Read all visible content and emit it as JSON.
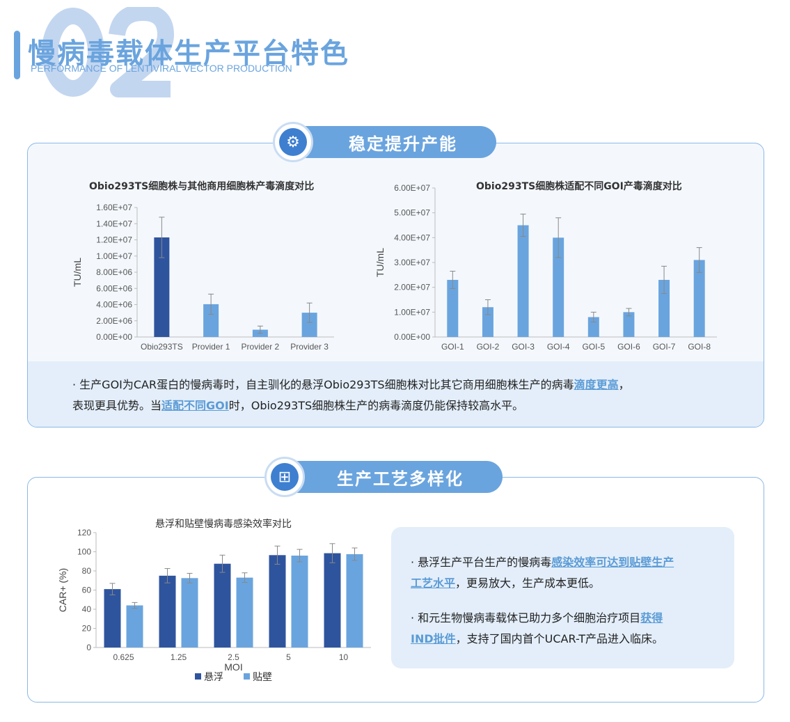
{
  "header": {
    "number": "02",
    "title": "慢病毒载体生产平台特色",
    "subtitle": "PERFORMANCE OF LENTIVIRAL VECTOR PRODUCTION"
  },
  "section1": {
    "pill": "稳定提升产能",
    "icon": "gear-icon",
    "text": {
      "p1a": "· 生产GOI为CAR蛋白的慢病毒时，自主驯化的悬浮Obio293TS细胞株对比其它商用细胞株生产的病毒",
      "p1hl": "滴度更高",
      "p1b": "，",
      "p2a": "表现更具优势。当",
      "p2hl": "适配不同GOI",
      "p2b": "时，Obio293TS细胞株生产的病毒滴度仍能保持较高水平。"
    }
  },
  "section2": {
    "pill": "生产工艺多样化",
    "icon": "network-icon",
    "text": {
      "b1a": "· 悬浮生产平台生产的慢病毒",
      "b1hl1": "感染效率可达到贴壁生产",
      "b1hl2": "工艺水平",
      "b1b": "，更易放大，生产成本更低。",
      "b2a": "· 和元生物慢病毒载体已助力多个细胞治疗项目",
      "b2hl1": "获得",
      "b2hl2": "IND批件",
      "b2b": "，支持了国内首个UCAR-T产品进入临床。"
    }
  },
  "colors": {
    "accent": "#6aa4de",
    "dark_bar": "#2f549e",
    "light_bar": "#6aa4de"
  },
  "chart_data": [
    {
      "type": "bar",
      "title": "Obio293TS细胞株与其他商用细胞株产毒滴度对比",
      "ylabel": "TU/mL",
      "xlabel": "",
      "ylim": [
        0,
        16000000
      ],
      "yticks": [
        "0.00E+00",
        "2.00E+06",
        "4.00E+06",
        "6.00E+06",
        "8.00E+06",
        "1.00E+07",
        "1.20E+07",
        "1.40E+07",
        "1.60E+07"
      ],
      "categories": [
        "Obio293TS",
        "Provider 1",
        "Provider 2",
        "Provider 3"
      ],
      "values": [
        12300000,
        4050000,
        900000,
        3000000
      ],
      "errors": [
        2500000,
        1250000,
        450000,
        1200000
      ],
      "colors": [
        "#2f549e",
        "#6aa4de",
        "#6aa4de",
        "#6aa4de"
      ]
    },
    {
      "type": "bar",
      "title": "Obio293TS细胞株适配不同GOI产毒滴度对比",
      "ylabel": "TU/mL",
      "xlabel": "",
      "ylim": [
        0,
        60000000
      ],
      "yticks": [
        "0.00E+00",
        "1.00E+07",
        "2.00E+07",
        "3.00E+07",
        "4.00E+07",
        "5.00E+07",
        "6.00E+07"
      ],
      "categories": [
        "GOI-1",
        "GOI-2",
        "GOI-3",
        "GOI-4",
        "GOI-5",
        "GOI-6",
        "GOI-7",
        "GOI-8"
      ],
      "values": [
        23000000,
        12000000,
        45000000,
        40000000,
        8000000,
        10000000,
        23000000,
        31000000
      ],
      "errors": [
        3500000,
        3000000,
        4500000,
        8000000,
        2000000,
        1500000,
        5500000,
        5000000
      ],
      "colors": [
        "#6aa4de"
      ]
    },
    {
      "type": "bar",
      "title": "悬浮和贴壁慢病毒感染效率对比",
      "ylabel": "CAR+ (%)",
      "xlabel": "MOI",
      "ylim": [
        0,
        120
      ],
      "yticks": [
        "0",
        "20",
        "40",
        "60",
        "80",
        "100",
        "120"
      ],
      "categories": [
        "0.625",
        "1.25",
        "2.5",
        "5",
        "10"
      ],
      "series": [
        {
          "name": "悬浮",
          "values": [
            61,
            75,
            87.5,
            96.5,
            98.5
          ],
          "errors": [
            6,
            7.5,
            9,
            9.5,
            10
          ],
          "color": "#2f549e"
        },
        {
          "name": "贴壁",
          "values": [
            44,
            72.5,
            73,
            96,
            97.5
          ],
          "errors": [
            3,
            5,
            5,
            6.5,
            6.5
          ],
          "color": "#6aa4de"
        }
      ],
      "legend": "bottom"
    }
  ]
}
